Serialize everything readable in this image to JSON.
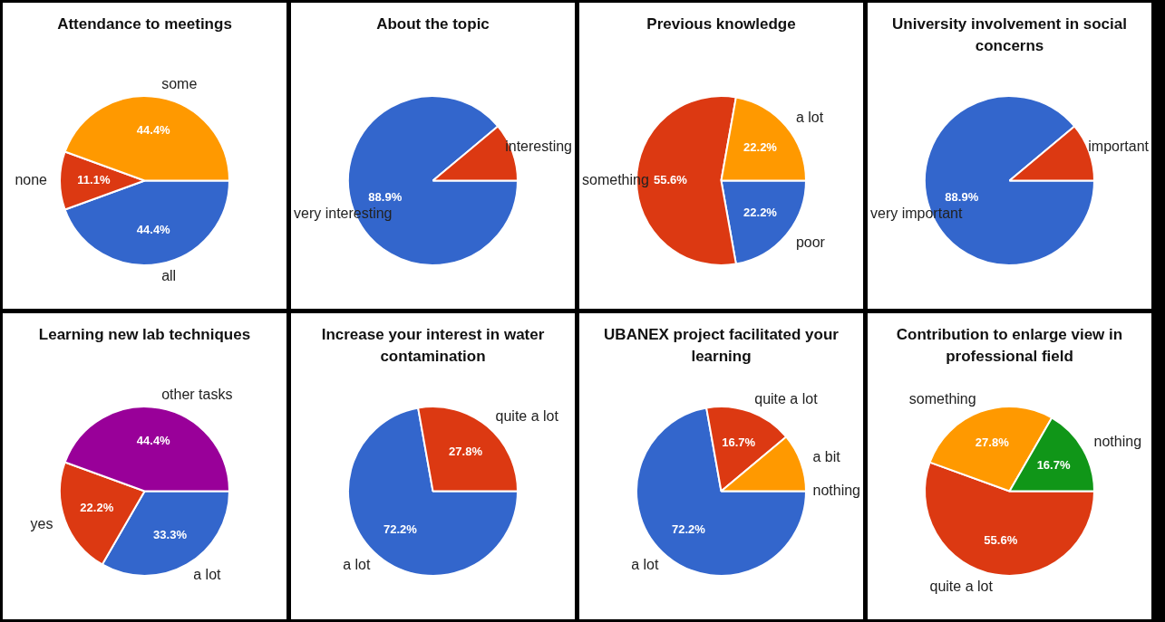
{
  "chart_data": [
    {
      "type": "pie",
      "title": "Attendance to meetings",
      "categories": [
        "all",
        "none",
        "some"
      ],
      "values": [
        44.4,
        11.1,
        44.4
      ],
      "colors": [
        "#3366cc",
        "#dc3912",
        "#ff9900"
      ],
      "value_labels": [
        "44.4%",
        "11.1%",
        "44.4%"
      ]
    },
    {
      "type": "pie",
      "title": "About the topic",
      "categories": [
        "very interesting",
        "interesting"
      ],
      "values": [
        88.9,
        11.1
      ],
      "colors": [
        "#3366cc",
        "#dc3912"
      ],
      "value_labels": [
        "88.9%",
        null
      ]
    },
    {
      "type": "pie",
      "title": "Previous knowledge",
      "categories": [
        "poor",
        "something",
        "a lot"
      ],
      "values": [
        22.2,
        55.6,
        22.2
      ],
      "colors": [
        "#3366cc",
        "#dc3912",
        "#ff9900"
      ],
      "value_labels": [
        "22.2%",
        "55.6%",
        "22.2%"
      ]
    },
    {
      "type": "pie",
      "title": "University involvement in social concerns",
      "categories": [
        "very important",
        "important"
      ],
      "values": [
        88.9,
        11.1
      ],
      "colors": [
        "#3366cc",
        "#dc3912"
      ],
      "value_labels": [
        "88.9%",
        null
      ]
    },
    {
      "type": "pie",
      "title": "Learning new lab techniques",
      "categories": [
        "a lot",
        "yes",
        "other tasks"
      ],
      "values": [
        33.3,
        22.2,
        44.4
      ],
      "colors": [
        "#3366cc",
        "#dc3912",
        "#990099"
      ],
      "value_labels": [
        "33.3%",
        "22.2%",
        "44.4%"
      ]
    },
    {
      "type": "pie",
      "title": "Increase your interest in water contamination",
      "categories": [
        "a lot",
        "quite a lot"
      ],
      "values": [
        72.2,
        27.8
      ],
      "colors": [
        "#3366cc",
        "#dc3912"
      ],
      "value_labels": [
        "72.2%",
        "27.8%"
      ]
    },
    {
      "type": "pie",
      "title": "UBANEX project facilitated your learning",
      "categories": [
        "a lot",
        "quite a lot",
        "a bit",
        "nothing"
      ],
      "values": [
        72.2,
        16.7,
        11.1,
        0
      ],
      "colors": [
        "#3366cc",
        "#dc3912",
        "#ff9900",
        "#109618"
      ],
      "value_labels": [
        "72.2%",
        "16.7%",
        null,
        null
      ]
    },
    {
      "type": "pie",
      "title": "Contribution to enlarge view in professional field",
      "categories": [
        "quite a lot",
        "something",
        "nothing"
      ],
      "values": [
        55.6,
        27.8,
        16.7
      ],
      "colors": [
        "#dc3912",
        "#ff9900",
        "#109618"
      ],
      "value_labels": [
        "55.6%",
        "27.8%",
        "16.7%"
      ]
    }
  ]
}
